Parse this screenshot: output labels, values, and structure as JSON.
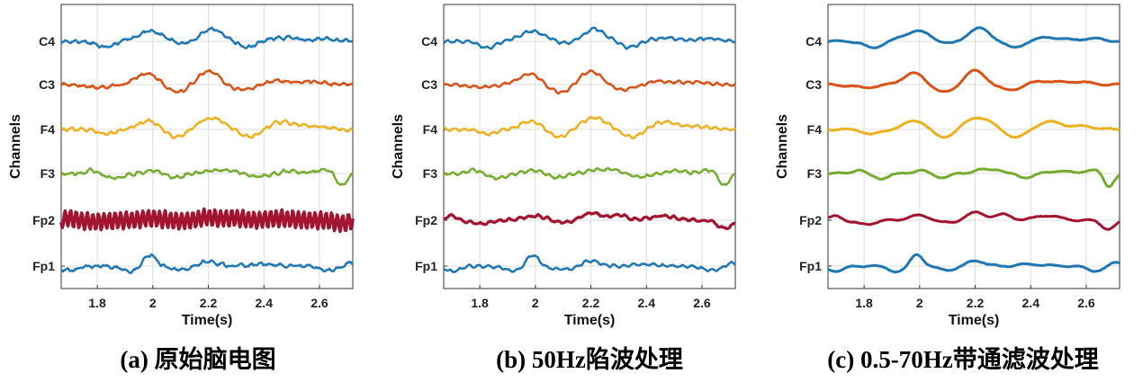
{
  "chart_data": [
    {
      "type": "line",
      "caption": "(a) 原始脑电图",
      "xlabel": "Time(s)",
      "ylabel": "Channels",
      "xlim": [
        1.67,
        2.72
      ],
      "x_ticks": [
        "1.8",
        "2",
        "2.2",
        "2.4",
        "2.6"
      ],
      "grid": true,
      "series": [
        {
          "name": "C4",
          "color": "#1f77b4"
        },
        {
          "name": "C3",
          "color": "#d95319"
        },
        {
          "name": "F4",
          "color": "#edb120"
        },
        {
          "name": "F3",
          "color": "#77ac30"
        },
        {
          "name": "Fp2",
          "color": "#a2142f"
        },
        {
          "name": "Fp1",
          "color": "#1f77b4"
        }
      ]
    },
    {
      "type": "line",
      "caption": "(b) 50Hz陷波处理",
      "xlabel": "Time(s)",
      "ylabel": "Channels",
      "xlim": [
        1.67,
        2.72
      ],
      "x_ticks": [
        "1.8",
        "2",
        "2.2",
        "2.4",
        "2.6"
      ],
      "grid": true,
      "series": [
        {
          "name": "C4",
          "color": "#1f77b4"
        },
        {
          "name": "C3",
          "color": "#d95319"
        },
        {
          "name": "F4",
          "color": "#edb120"
        },
        {
          "name": "F3",
          "color": "#77ac30"
        },
        {
          "name": "Fp2",
          "color": "#a2142f"
        },
        {
          "name": "Fp1",
          "color": "#1f77b4"
        }
      ]
    },
    {
      "type": "line",
      "caption": "(c) 0.5-70Hz带通滤波处理",
      "xlabel": "Time(s)",
      "ylabel": "Channels",
      "xlim": [
        1.67,
        2.72
      ],
      "x_ticks": [
        "1.8",
        "2",
        "2.2",
        "2.4",
        "2.6"
      ],
      "grid": true,
      "series": [
        {
          "name": "C4",
          "color": "#1f77b4"
        },
        {
          "name": "C3",
          "color": "#d95319"
        },
        {
          "name": "F4",
          "color": "#edb120"
        },
        {
          "name": "F3",
          "color": "#77ac30"
        },
        {
          "name": "Fp2",
          "color": "#a2142f"
        },
        {
          "name": "Fp1",
          "color": "#1f77b4"
        }
      ]
    }
  ]
}
